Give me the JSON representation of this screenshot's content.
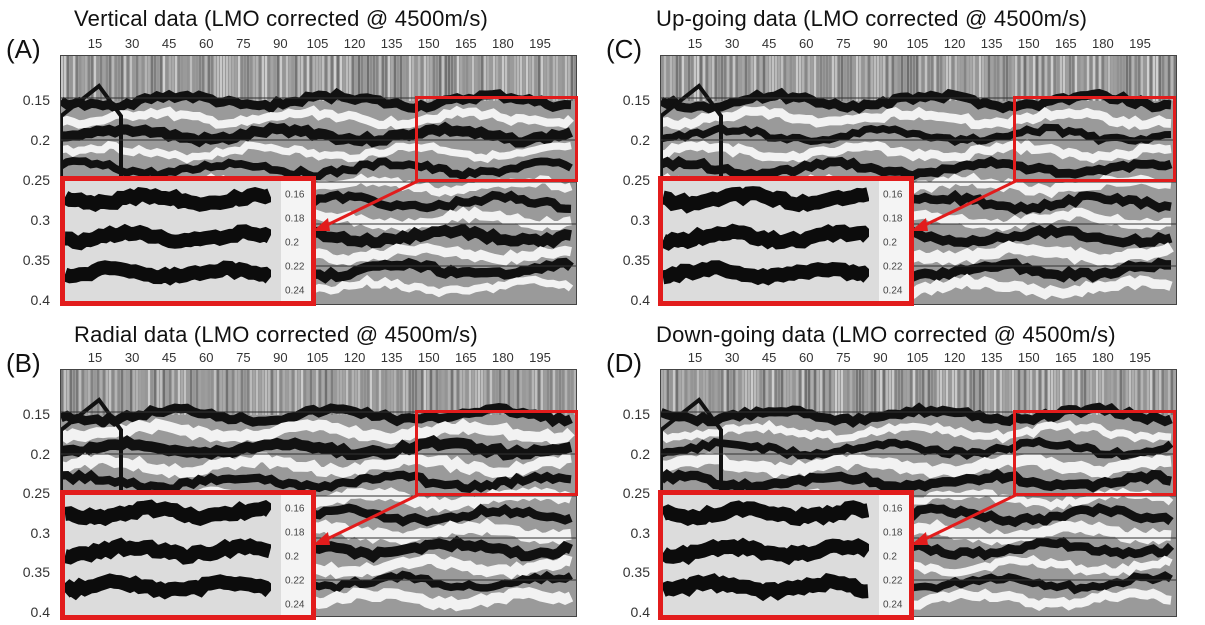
{
  "panels": [
    {
      "id": "A",
      "letter": "(A)",
      "title": "Vertical data (LMO corrected @ 4500m/s)"
    },
    {
      "id": "B",
      "letter": "(B)",
      "title": "Radial data (LMO corrected @ 4500m/s)"
    },
    {
      "id": "C",
      "letter": "(C)",
      "title": "Up-going data (LMO corrected @ 4500m/s)"
    },
    {
      "id": "D",
      "letter": "(D)",
      "title": "Down-going data (LMO corrected @ 4500m/s)"
    }
  ],
  "x_ticks": [
    "15",
    "30",
    "45",
    "60",
    "75",
    "90",
    "105",
    "120",
    "135",
    "150",
    "165",
    "180",
    "195"
  ],
  "y_ticks": [
    "0.15",
    "0.2",
    "0.25",
    "0.3",
    "0.35",
    "0.4"
  ],
  "inset_ticks": [
    "0.16",
    "0.18",
    "0.2",
    "0.22",
    "0.24"
  ],
  "colors": {
    "highlight": "#e21c1c",
    "background": "#ffffff"
  }
}
